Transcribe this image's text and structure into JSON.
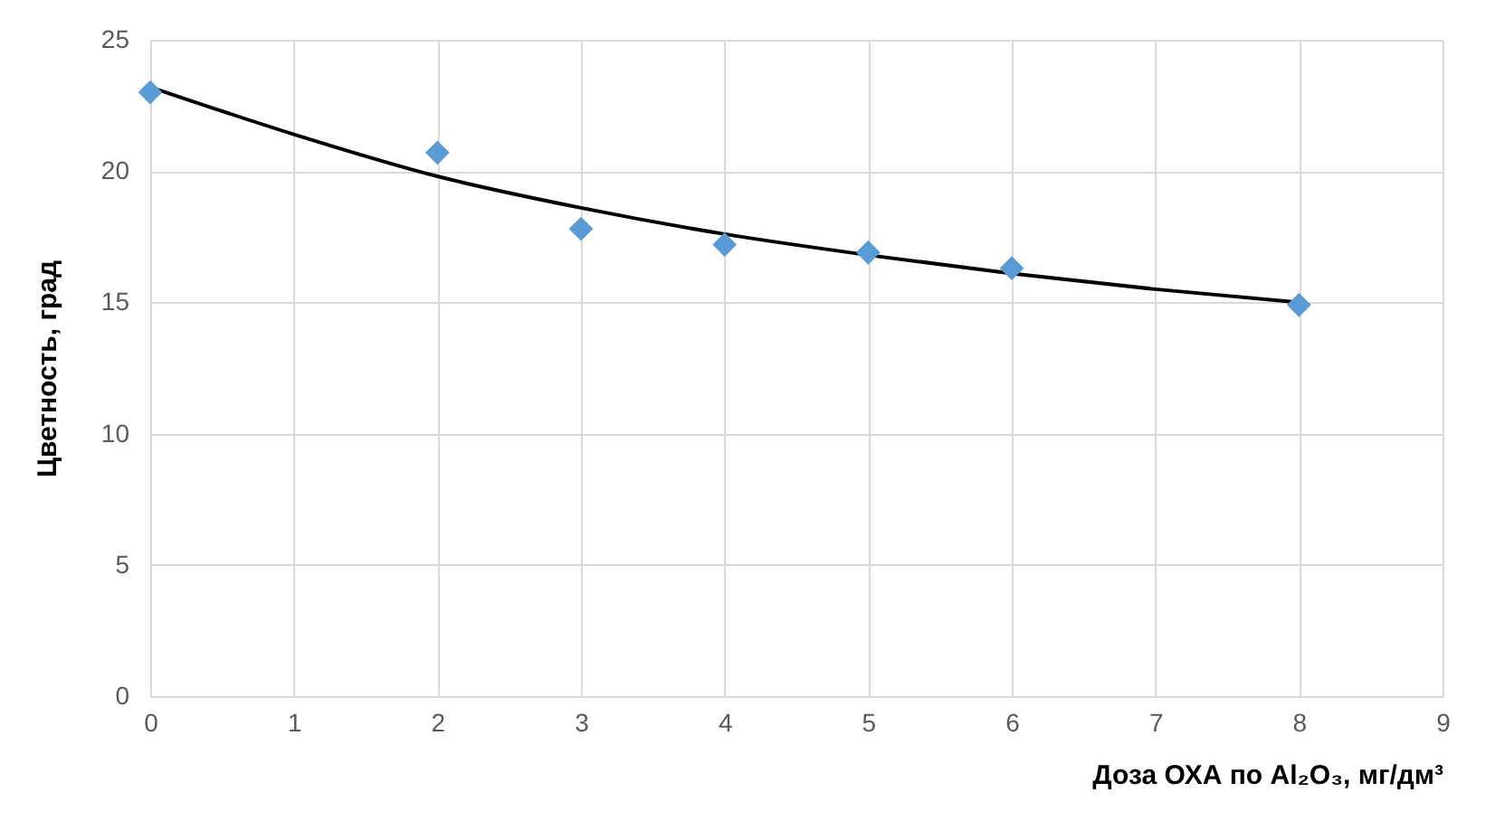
{
  "chart_data": {
    "type": "scatter",
    "xlabel": "Доза ОХА  по  Al₂O₃, мг/дм³",
    "ylabel": "Цветность, град",
    "xlim": [
      0,
      9
    ],
    "xticks": [
      0,
      1,
      2,
      3,
      4,
      5,
      6,
      7,
      8,
      9
    ],
    "ylim": [
      0,
      25
    ],
    "yticks": [
      0,
      5,
      10,
      15,
      20,
      25
    ],
    "grid": true,
    "marker": "diamond",
    "series": [
      {
        "color": "#5b9bd5",
        "x": [
          0,
          2,
          3,
          4,
          5,
          6,
          8
        ],
        "values": [
          23.0,
          20.7,
          17.8,
          17.2,
          16.9,
          16.3,
          14.9
        ]
      },
      {
        "type": "line",
        "color": "#000000",
        "marker": "none",
        "line_style": "solid",
        "x": [
          0,
          1,
          2,
          3,
          4,
          5,
          6,
          7,
          8
        ],
        "values": [
          23.2,
          21.4,
          19.8,
          18.6,
          17.6,
          16.8,
          16.1,
          15.5,
          15.0
        ]
      }
    ]
  }
}
